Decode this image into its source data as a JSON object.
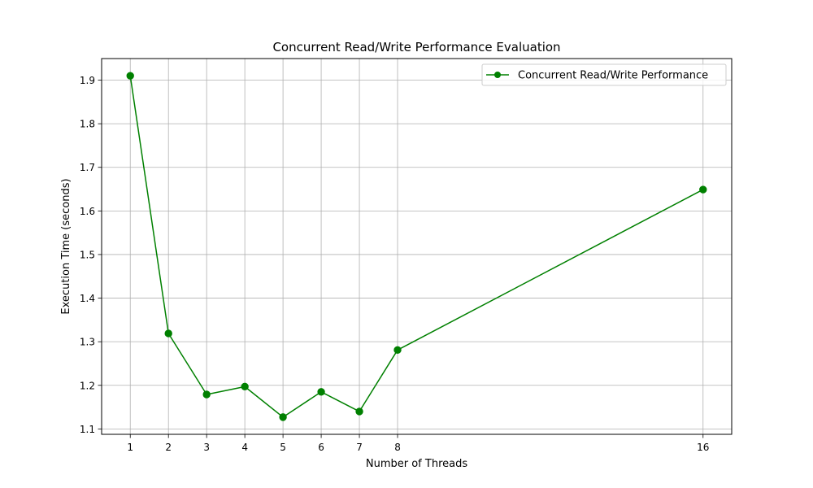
{
  "chart_data": {
    "type": "line",
    "title": "Concurrent Read/Write Performance Evaluation",
    "xlabel": "Number of Threads",
    "ylabel": "Execution Time (seconds)",
    "x": [
      1,
      2,
      3,
      4,
      5,
      6,
      7,
      8,
      16
    ],
    "series": [
      {
        "name": "Concurrent Read/Write Performance",
        "color": "#008000",
        "marker": "circle",
        "values": [
          1.91,
          1.319,
          1.179,
          1.197,
          1.127,
          1.185,
          1.14,
          1.281,
          1.649
        ]
      }
    ],
    "xticks": [
      "1",
      "2",
      "3",
      "4",
      "5",
      "6",
      "7",
      "8",
      "16"
    ],
    "yticks": [
      "1.1",
      "1.2",
      "1.3",
      "1.4",
      "1.5",
      "1.6",
      "1.7",
      "1.8",
      "1.9"
    ],
    "xlim": [
      0.25,
      16.75
    ],
    "ylim": [
      1.0876,
      1.9495
    ],
    "grid": true,
    "legend_position": "upper right"
  }
}
